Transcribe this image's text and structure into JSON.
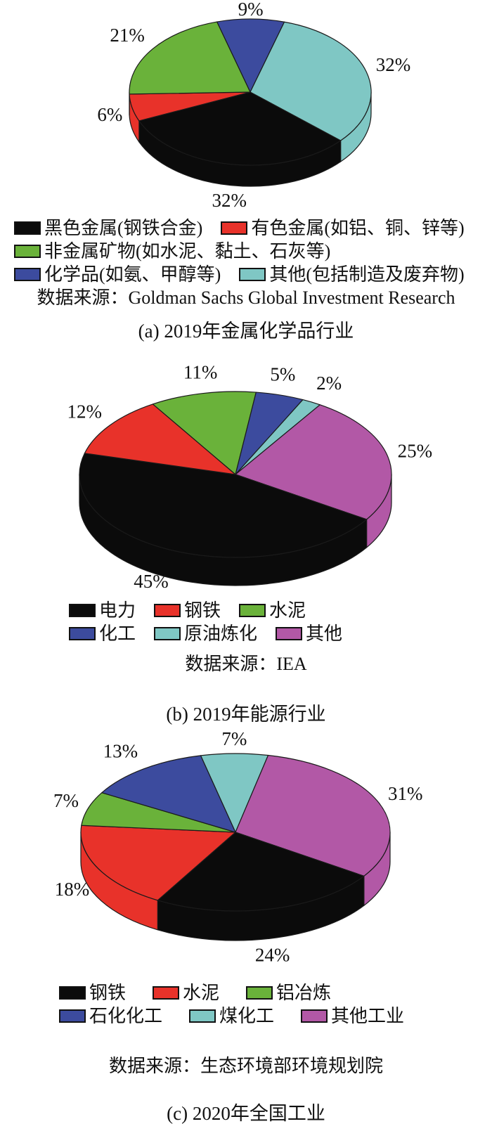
{
  "palette": {
    "black": "#0b0b0b",
    "red": "#e8322a",
    "green": "#6ab23a",
    "blue": "#3c4b9e",
    "cyan": "#7fc7c4",
    "magenta": "#b258a6"
  },
  "chart_data": [
    {
      "id": "a",
      "type": "pie",
      "style": "pie3d",
      "title": "(a) 2019年金属化学品行业",
      "source": "数据来源：Goldman Sachs Global Investment Research",
      "legend_position": "below",
      "start_angle": -106,
      "clockwise": true,
      "slices": [
        {
          "label": "化学品(如氨、甲醇等)",
          "value": 9,
          "pct_label": "9%",
          "color": "#3c4b9e"
        },
        {
          "label": "其他(包括制造及废弃物)",
          "value": 32,
          "pct_label": "32%",
          "color": "#7fc7c4"
        },
        {
          "label": "黑色金属(钢铁合金)",
          "value": 32,
          "pct_label": "32%",
          "color": "#0b0b0b"
        },
        {
          "label": "有色金属(如铝、铜、锌等)",
          "value": 6,
          "pct_label": "6%",
          "color": "#e8322a"
        },
        {
          "label": "非金属矿物(如水泥、黏土、石灰等)",
          "value": 21,
          "pct_label": "21%",
          "color": "#6ab23a"
        }
      ],
      "legend_rows": [
        [
          {
            "color": "#0b0b0b",
            "label": "黑色金属(钢铁合金)"
          },
          {
            "color": "#e8322a",
            "label": "有色金属(如铝、铜、锌等)"
          }
        ],
        [
          {
            "color": "#6ab23a",
            "label": "非金属矿物(如水泥、黏土、石灰等)"
          }
        ],
        [
          {
            "color": "#3c4b9e",
            "label": "化学品(如氨、甲醇等)"
          },
          {
            "color": "#7fc7c4",
            "label": "其他(包括制造及废弃物)"
          }
        ]
      ]
    },
    {
      "id": "b",
      "type": "pie",
      "style": "pie3d",
      "title": "(b) 2019年能源行业",
      "source": "数据来源：IEA",
      "legend_position": "below",
      "start_angle": -122,
      "clockwise": true,
      "slices": [
        {
          "label": "水泥",
          "value": 11,
          "pct_label": "11%",
          "color": "#6ab23a"
        },
        {
          "label": "化工",
          "value": 5,
          "pct_label": "5%",
          "color": "#3c4b9e"
        },
        {
          "label": "原油炼化",
          "value": 2,
          "pct_label": "2%",
          "color": "#7fc7c4"
        },
        {
          "label": "其他",
          "value": 25,
          "pct_label": "25%",
          "color": "#b258a6"
        },
        {
          "label": "电力",
          "value": 45,
          "pct_label": "45%",
          "color": "#0b0b0b"
        },
        {
          "label": "钢铁",
          "value": 12,
          "pct_label": "12%",
          "color": "#e8322a"
        }
      ],
      "legend_rows": [
        [
          {
            "color": "#0b0b0b",
            "label": "电力"
          },
          {
            "color": "#e8322a",
            "label": "钢铁"
          },
          {
            "color": "#6ab23a",
            "label": "水泥"
          }
        ],
        [
          {
            "color": "#3c4b9e",
            "label": "化工"
          },
          {
            "color": "#7fc7c4",
            "label": "原油炼化"
          },
          {
            "color": "#b258a6",
            "label": "其他"
          }
        ]
      ]
    },
    {
      "id": "c",
      "type": "pie",
      "style": "pie3d",
      "title": "(c) 2020年全国工业",
      "source": "数据来源：生态环境部环境规划院",
      "legend_position": "below",
      "start_angle": -103,
      "clockwise": true,
      "slices": [
        {
          "label": "煤化工",
          "value": 7,
          "pct_label": "7%",
          "color": "#7fc7c4"
        },
        {
          "label": "其他工业",
          "value": 31,
          "pct_label": "31%",
          "color": "#b258a6"
        },
        {
          "label": "钢铁",
          "value": 24,
          "pct_label": "24%",
          "color": "#0b0b0b"
        },
        {
          "label": "水泥",
          "value": 18,
          "pct_label": "18%",
          "color": "#e8322a"
        },
        {
          "label": "铝冶炼",
          "value": 7,
          "pct_label": "7%",
          "color": "#6ab23a"
        },
        {
          "label": "石化化工",
          "value": 13,
          "pct_label": "13%",
          "color": "#3c4b9e"
        }
      ],
      "legend_rows": [
        [
          {
            "color": "#0b0b0b",
            "label": "钢铁"
          },
          {
            "color": "#e8322a",
            "label": "水泥"
          },
          {
            "color": "#6ab23a",
            "label": "铝冶炼"
          }
        ],
        [
          {
            "color": "#3c4b9e",
            "label": "石化化工"
          },
          {
            "color": "#7fc7c4",
            "label": "煤化工"
          },
          {
            "color": "#b258a6",
            "label": "其他工业"
          }
        ]
      ]
    }
  ]
}
